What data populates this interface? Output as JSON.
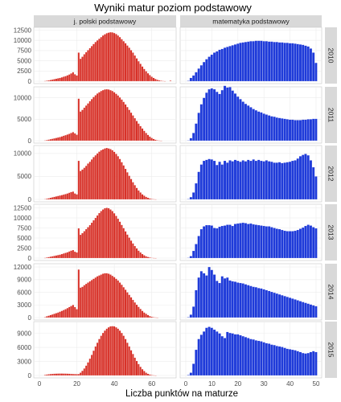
{
  "chart_data": {
    "type": "bar",
    "title": "Wyniki matur poziom podstawowy",
    "xlabel": "Liczba punktów na maturze",
    "ylabel": "",
    "columns": [
      {
        "label": "j. polski podstawowy",
        "xmax_points": 70,
        "color": "#d73027",
        "xticks": [
          0,
          20,
          40,
          60
        ]
      },
      {
        "label": "matematyka podstawowy",
        "xmax_points": 50,
        "color": "#1f3bd9",
        "xticks": [
          0,
          10,
          20,
          30,
          40,
          50
        ]
      }
    ],
    "rows": [
      {
        "year": "2010",
        "ylim": [
          0,
          12600
        ],
        "yticks": [
          0,
          2500,
          5000,
          7500,
          10000,
          12500
        ],
        "series": [
          {
            "name": "j. polski podstawowy",
            "values": [
              0,
              0,
              0,
              50,
              120,
              200,
              300,
              400,
              500,
              600,
              700,
              800,
              950,
              1100,
              1250,
              1450,
              1650,
              1900,
              2200,
              1700,
              1400,
              7000,
              5500,
              6000,
              6600,
              7100,
              7600,
              8100,
              8600,
              9100,
              9600,
              10000,
              10400,
              10800,
              11200,
              11500,
              11750,
              11900,
              12000,
              11950,
              11800,
              11550,
              11200,
              10800,
              10300,
              9800,
              9300,
              8750,
              8200,
              7600,
              7000,
              6300,
              5600,
              4900,
              4250,
              3600,
              3000,
              2450,
              1950,
              1500,
              1100,
              800,
              550,
              350,
              200,
              120,
              60,
              20,
              0,
              0,
              150
            ]
          },
          {
            "name": "matematyka podstawowy",
            "values": [
              0,
              100,
              800,
              1400,
              2200,
              3100,
              3900,
              4700,
              5400,
              6000,
              6500,
              7000,
              7300,
              7700,
              7900,
              8200,
              8400,
              8600,
              8800,
              9000,
              9200,
              9400,
              9500,
              9600,
              9700,
              9800,
              9800,
              9900,
              9900,
              9900,
              9800,
              9800,
              9700,
              9700,
              9600,
              9600,
              9500,
              9500,
              9400,
              9400,
              9300,
              9300,
              9200,
              9100,
              9000,
              8900,
              8700,
              8500,
              8000,
              7000,
              4500
            ]
          }
        ]
      },
      {
        "year": "2011",
        "ylim": [
          0,
          12000
        ],
        "yticks": [
          0,
          5000,
          10000
        ],
        "series": [
          {
            "name": "j. polski podstawowy",
            "values": [
              0,
              0,
              0,
              60,
              150,
              250,
              350,
              450,
              550,
              650,
              750,
              850,
              1000,
              1150,
              1300,
              1450,
              1600,
              1800,
              2000,
              1700,
              1400,
              9800,
              6800,
              7200,
              7700,
              8200,
              8700,
              9200,
              9700,
              10200,
              10600,
              11000,
              11300,
              11600,
              11800,
              11950,
              12000,
              11950,
              11800,
              11600,
              11300,
              10950,
              10550,
              10100,
              9600,
              9050,
              8450,
              7850,
              7200,
              6550,
              5900,
              5250,
              4600,
              4000,
              3400,
              2850,
              2300,
              1800,
              1350,
              950,
              650,
              400,
              220,
              100,
              40,
              10,
              0,
              0,
              0,
              0,
              0
            ]
          },
          {
            "name": "matematyka podstawowy",
            "values": [
              0,
              80,
              600,
              1800,
              4000,
              6500,
              8500,
              10000,
              11200,
              12000,
              12200,
              12000,
              11400,
              10900,
              11800,
              12800,
              12400,
              12500,
              11700,
              11000,
              10300,
              9700,
              9100,
              8600,
              8200,
              7800,
              7400,
              7100,
              6800,
              6600,
              6300,
              6100,
              5900,
              5700,
              5600,
              5400,
              5300,
              5200,
              5100,
              5000,
              4900,
              4900,
              4800,
              4800,
              4800,
              4900,
              4900,
              5000,
              5000,
              5100,
              5100
            ]
          }
        ]
      },
      {
        "year": "2012",
        "ylim": [
          0,
          11200
        ],
        "yticks": [
          0,
          5000,
          10000
        ],
        "series": [
          {
            "name": "j. polski podstawowy",
            "values": [
              0,
              0,
              0,
              70,
              150,
              250,
              350,
              450,
              550,
              650,
              750,
              850,
              950,
              1050,
              1150,
              1300,
              1450,
              1600,
              1700,
              1300,
              1100,
              8400,
              6200,
              6500,
              6900,
              7300,
              7800,
              8200,
              8700,
              9200,
              9600,
              10000,
              10400,
              10700,
              10900,
              11100,
              11200,
              11100,
              10950,
              10700,
              10350,
              9900,
              9400,
              8800,
              8100,
              7400,
              6650,
              5900,
              5150,
              4450,
              3750,
              3100,
              2500,
              1950,
              1500,
              1100,
              800,
              550,
              350,
              200,
              100,
              50,
              20,
              0,
              0,
              0,
              0,
              0,
              0,
              0,
              0
            ]
          },
          {
            "name": "matematyka podstawowy",
            "values": [
              0,
              80,
              500,
              1500,
              3500,
              6000,
              7600,
              8400,
              8600,
              8800,
              8700,
              8400,
              7500,
              8200,
              7600,
              8400,
              8000,
              8500,
              8300,
              8600,
              8400,
              8200,
              8500,
              8300,
              8600,
              8400,
              8700,
              8400,
              8600,
              8400,
              8300,
              8500,
              8300,
              8200,
              8000,
              8000,
              8100,
              7900,
              8000,
              8100,
              8200,
              8400,
              8500,
              8900,
              9400,
              9700,
              9900,
              9600,
              8500,
              7000,
              5000
            ]
          }
        ]
      },
      {
        "year": "2013",
        "ylim": [
          0,
          12800
        ],
        "yticks": [
          0,
          2500,
          5000,
          7500,
          10000,
          12500
        ],
        "series": [
          {
            "name": "j. polski podstawowy",
            "values": [
              0,
              0,
              0,
              50,
              150,
              250,
              350,
              450,
              550,
              650,
              750,
              850,
              1000,
              1150,
              1300,
              1450,
              1650,
              1850,
              2000,
              1600,
              1400,
              7400,
              5800,
              6200,
              6700,
              7200,
              7700,
              8200,
              8800,
              9400,
              10000,
              10600,
              11200,
              11700,
              12100,
              12400,
              12500,
              12400,
              12100,
              11700,
              11150,
              10500,
              9800,
              9050,
              8250,
              7450,
              6650,
              5850,
              5100,
              4350,
              3650,
              3000,
              2400,
              1850,
              1400,
              1000,
              700,
              450,
              280,
              160,
              80,
              30,
              10,
              0,
              0,
              0,
              0,
              0,
              0,
              0,
              0
            ]
          },
          {
            "name": "matematyka podstawowy",
            "values": [
              0,
              80,
              500,
              1800,
              3500,
              5500,
              7200,
              7900,
              8200,
              8200,
              8100,
              7500,
              7400,
              7800,
              8000,
              8100,
              8300,
              8300,
              8000,
              8500,
              8600,
              8700,
              8800,
              8700,
              8500,
              8600,
              8400,
              8300,
              8200,
              8100,
              8000,
              7900,
              7900,
              7700,
              7500,
              7300,
              7200,
              7000,
              6800,
              6700,
              6700,
              6700,
              6800,
              7000,
              7300,
              7600,
              8000,
              8300,
              8100,
              7700,
              7400
            ]
          }
        ]
      },
      {
        "year": "2014",
        "ylim": [
          0,
          12200
        ],
        "yticks": [
          0,
          3000,
          6000,
          9000,
          12000
        ],
        "series": [
          {
            "name": "j. polski podstawowy",
            "values": [
              0,
              0,
              0,
              100,
              300,
              450,
              600,
              750,
              900,
              1050,
              1200,
              1400,
              1600,
              1800,
              2000,
              2250,
              2500,
              2750,
              3000,
              2500,
              2000,
              11400,
              7100,
              7300,
              7700,
              8000,
              8300,
              8600,
              8900,
              9200,
              9500,
              9800,
              10000,
              10200,
              10400,
              10500,
              10500,
              10400,
              10200,
              9900,
              9600,
              9200,
              8800,
              8300,
              7800,
              7200,
              6600,
              6000,
              5400,
              4800,
              4200,
              3600,
              3050,
              2550,
              2050,
              1600,
              1200,
              900,
              600,
              350,
              200,
              100,
              40,
              10,
              0,
              0,
              0,
              0,
              0,
              0,
              0
            ]
          },
          {
            "name": "matematyka podstawowy",
            "values": [
              0,
              100,
              700,
              2600,
              6500,
              9500,
              11000,
              10500,
              10000,
              12000,
              11300,
              10200,
              8700,
              8200,
              9800,
              9300,
              9500,
              8800,
              8600,
              8500,
              8300,
              8200,
              8100,
              7900,
              7700,
              7500,
              7300,
              7200,
              7000,
              6900,
              6700,
              6500,
              6300,
              6100,
              5900,
              5700,
              5500,
              5300,
              5100,
              4900,
              4700,
              4500,
              4300,
              4100,
              3900,
              3700,
              3500,
              3300,
              3100,
              2900,
              2700
            ]
          }
        ]
      },
      {
        "year": "2015",
        "ylim": [
          0,
          11000
        ],
        "yticks": [
          0,
          3000,
          6000,
          9000
        ],
        "series": [
          {
            "name": "j. polski podstawowy",
            "values": [
              0,
              0,
              0,
              120,
              200,
              260,
              300,
              340,
              370,
              390,
              410,
              420,
              420,
              410,
              400,
              380,
              360,
              340,
              320,
              300,
              280,
              300,
              600,
              1000,
              1500,
              2100,
              2800,
              3600,
              4400,
              5300,
              6200,
              7000,
              7800,
              8500,
              9100,
              9600,
              10000,
              10300,
              10500,
              10550,
              10500,
              10300,
              10000,
              9600,
              9100,
              8500,
              7800,
              7000,
              6200,
              5400,
              4600,
              3800,
              3100,
              2450,
              1850,
              1350,
              950,
              600,
              350,
              200,
              100,
              40,
              10,
              0,
              0,
              0,
              0,
              0,
              0,
              0,
              0
            ]
          },
          {
            "name": "matematyka podstawowy",
            "values": [
              0,
              100,
              600,
              2500,
              5500,
              7800,
              8700,
              9400,
              10200,
              10400,
              10200,
              9800,
              9400,
              9000,
              8400,
              8000,
              9300,
              9100,
              9000,
              8800,
              8800,
              8600,
              8400,
              8200,
              8000,
              7800,
              7700,
              7500,
              7400,
              7300,
              7100,
              6900,
              6800,
              6600,
              6500,
              6300,
              6200,
              6100,
              5900,
              5700,
              5600,
              5500,
              5400,
              5200,
              5000,
              4800,
              4700,
              4800,
              5000,
              5200,
              5000
            ]
          }
        ]
      }
    ]
  }
}
